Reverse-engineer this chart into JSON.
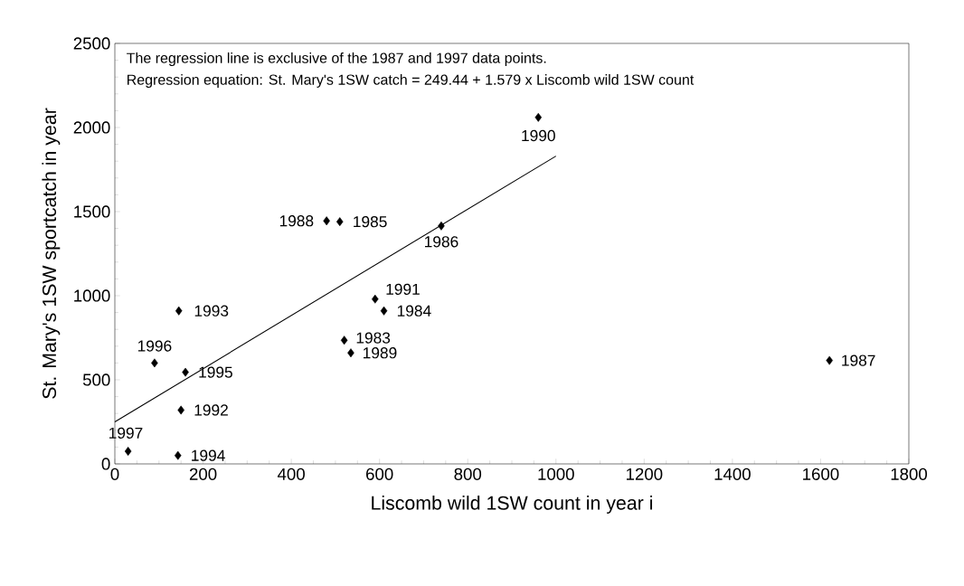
{
  "chart_data": {
    "type": "scatter",
    "xlabel": "Liscomb wild 1SW count in year i",
    "ylabel": "St. Mary's 1SW sportcatch in year",
    "xlim": [
      0,
      1800
    ],
    "ylim": [
      0,
      2500
    ],
    "xticks": [
      0,
      200,
      400,
      600,
      800,
      1000,
      1200,
      1400,
      1600,
      1800
    ],
    "yticks": [
      0,
      500,
      1000,
      1500,
      2000,
      2500
    ],
    "grid": false,
    "marker": "diamond",
    "series": [
      {
        "color": "#000000",
        "x": [
          30,
          143,
          150,
          160,
          90,
          145,
          480,
          510,
          740,
          960,
          590,
          610,
          520,
          535,
          1620
        ],
        "values": [
          75,
          50,
          320,
          545,
          600,
          910,
          1445,
          1440,
          1415,
          2060,
          980,
          910,
          735,
          660,
          615
        ]
      },
      {
        "type": "line",
        "color": "#000000",
        "marker": "none",
        "x": [
          0,
          1000
        ],
        "values": [
          250,
          1830
        ]
      }
    ],
    "annotations": [
      "The regression line is exclusive of the 1987 and 1997 data points.",
      "Regression equation:  St. Mary's 1SW catch = 249.44 + 1.579 x Liscomb wild 1SW count",
      {
        "text": "1997",
        "x": 30,
        "y": 75
      },
      {
        "text": "1994",
        "x": 143,
        "y": 50
      },
      {
        "text": "1992",
        "x": 150,
        "y": 320
      },
      {
        "text": "1995",
        "x": 160,
        "y": 545
      },
      {
        "text": "1996",
        "x": 90,
        "y": 600
      },
      {
        "text": "1993",
        "x": 145,
        "y": 910
      },
      {
        "text": "1988",
        "x": 480,
        "y": 1445
      },
      {
        "text": "1985",
        "x": 510,
        "y": 1440
      },
      {
        "text": "1986",
        "x": 740,
        "y": 1415
      },
      {
        "text": "1990",
        "x": 960,
        "y": 2060
      },
      {
        "text": "1991",
        "x": 590,
        "y": 980
      },
      {
        "text": "1984",
        "x": 610,
        "y": 910
      },
      {
        "text": "1983",
        "x": 520,
        "y": 735
      },
      {
        "text": "1989",
        "x": 535,
        "y": 660
      },
      {
        "text": "1987",
        "x": 1620,
        "y": 615
      }
    ]
  }
}
